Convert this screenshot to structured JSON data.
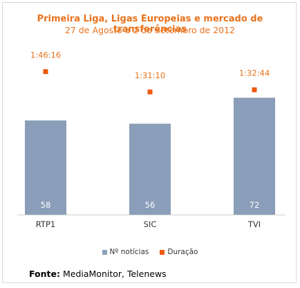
{
  "colors": {
    "accent": "#e8721c",
    "bar": "#8a9eb9",
    "marker": "#ee5a0c"
  },
  "chart_data": {
    "type": "bar",
    "title": "Primeira Liga, Ligas Europeias e mercado de transferências",
    "subtitle": "27 de Agosto a 2 de Setembro de 2012",
    "categories": [
      "RTP1",
      "SIC",
      "TVI"
    ],
    "series": [
      {
        "name": "Nº notícias",
        "values": [
          58,
          56,
          72
        ],
        "kind": "bar"
      },
      {
        "name": "Duração",
        "values": [
          "1:46:16",
          "1:31:10",
          "1:32:44"
        ],
        "values_seconds": [
          6376,
          5470,
          5564
        ],
        "kind": "marker"
      }
    ],
    "legend_position": "bottom",
    "grid": false
  },
  "source": {
    "label": "Fonte:",
    "text": "MediaMonitor, Telenews"
  }
}
